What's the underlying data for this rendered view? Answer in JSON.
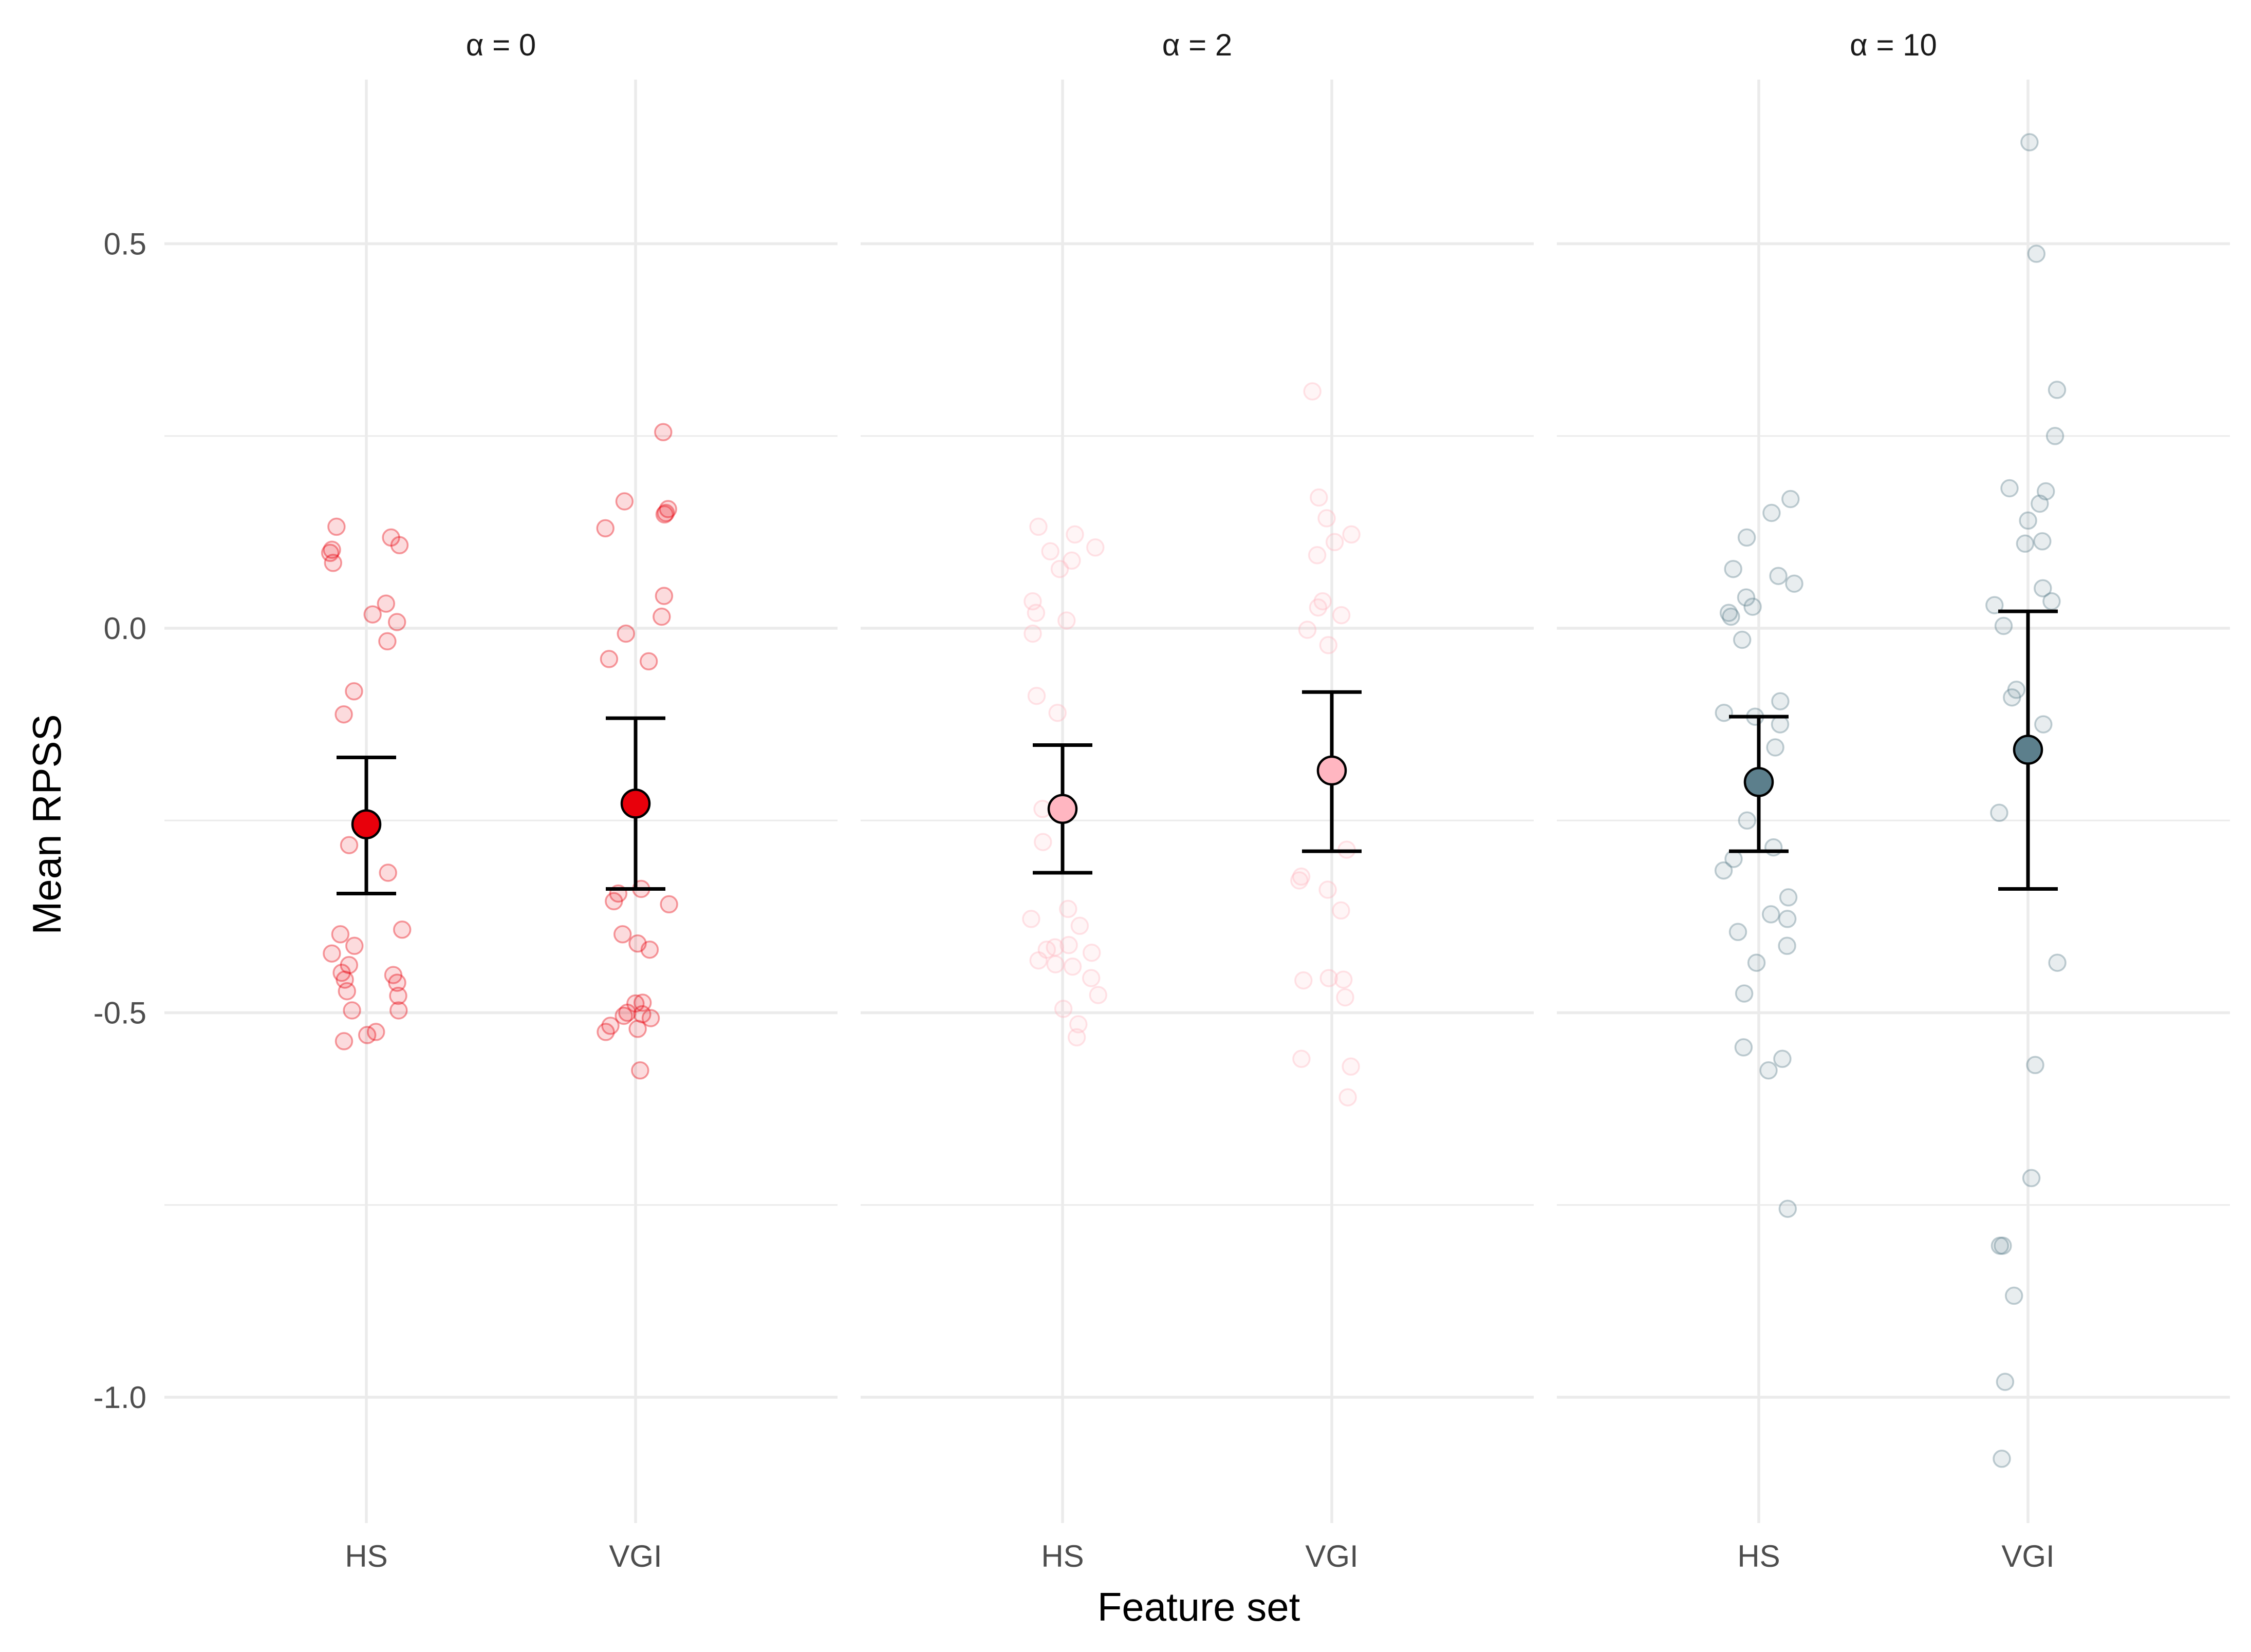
{
  "chart_data": {
    "type": "scatter",
    "title": "",
    "xlabel": "Feature set",
    "ylabel": "Mean RPSS",
    "categories": [
      "HS",
      "VGI"
    ],
    "ylim": [
      -1.17,
      0.71
    ],
    "y_ticks": [
      0.5,
      0.0,
      -0.5,
      -1.0
    ],
    "y_tick_labels": [
      "0.5",
      "0.0",
      "-0.5",
      "-1.0"
    ],
    "y_minor_ticks": [
      0.25,
      -0.25,
      -0.75
    ],
    "grid": true,
    "legend": "none",
    "panels": [
      {
        "label": "α = 0",
        "color": "#e8000b",
        "series": [
          {
            "name": "HS",
            "mean": -0.255,
            "lower": -0.345,
            "upper": -0.168,
            "points": [
              0.132,
              0.118,
              0.108,
              0.102,
              0.098,
              0.085,
              0.032,
              0.018,
              0.008,
              -0.017,
              -0.082,
              -0.112,
              -0.282,
              -0.318,
              -0.392,
              -0.398,
              -0.413,
              -0.423,
              -0.438,
              -0.448,
              -0.451,
              -0.457,
              -0.461,
              -0.472,
              -0.478,
              -0.497,
              -0.497,
              -0.525,
              -0.529,
              -0.537
            ]
          },
          {
            "name": "VGI",
            "mean": -0.228,
            "lower": -0.339,
            "upper": -0.117,
            "points": [
              0.255,
              0.165,
              0.155,
              0.15,
              0.148,
              0.13,
              0.042,
              0.015,
              -0.007,
              -0.04,
              -0.043,
              -0.339,
              -0.345,
              -0.355,
              -0.359,
              -0.398,
              -0.41,
              -0.418,
              -0.487,
              -0.488,
              -0.5,
              -0.502,
              -0.504,
              -0.507,
              -0.517,
              -0.521,
              -0.525,
              -0.575
            ]
          }
        ]
      },
      {
        "label": "α = 2",
        "color": "#ffb6c1",
        "series": [
          {
            "name": "HS",
            "mean": -0.235,
            "lower": -0.318,
            "upper": -0.152,
            "points": [
              0.132,
              0.122,
              0.105,
              0.1,
              0.088,
              0.077,
              0.035,
              0.02,
              0.01,
              -0.007,
              -0.088,
              -0.11,
              -0.235,
              -0.278,
              -0.365,
              -0.378,
              -0.387,
              -0.412,
              -0.415,
              -0.418,
              -0.422,
              -0.432,
              -0.437,
              -0.44,
              -0.455,
              -0.477,
              -0.495,
              -0.515,
              -0.532
            ]
          },
          {
            "name": "VGI",
            "mean": -0.185,
            "lower": -0.29,
            "upper": -0.083,
            "points": [
              0.308,
              0.17,
              0.143,
              0.122,
              0.112,
              0.095,
              0.035,
              0.027,
              0.017,
              -0.002,
              -0.022,
              -0.288,
              -0.323,
              -0.328,
              -0.34,
              -0.367,
              -0.455,
              -0.457,
              -0.458,
              -0.48,
              -0.56,
              -0.57,
              -0.61
            ]
          }
        ]
      },
      {
        "label": "α = 10",
        "color": "#5c7f8c",
        "series": [
          {
            "name": "HS",
            "mean": -0.2,
            "lower": -0.29,
            "upper": -0.115,
            "points": [
              0.168,
              0.15,
              0.118,
              0.077,
              0.068,
              0.058,
              0.04,
              0.028,
              0.02,
              0.015,
              -0.015,
              -0.095,
              -0.11,
              -0.115,
              -0.125,
              -0.155,
              -0.25,
              -0.285,
              -0.3,
              -0.315,
              -0.35,
              -0.372,
              -0.378,
              -0.395,
              -0.413,
              -0.435,
              -0.475,
              -0.545,
              -0.56,
              -0.575,
              -0.755
            ]
          },
          {
            "name": "VGI",
            "mean": -0.158,
            "lower": -0.339,
            "upper": 0.022,
            "points": [
              0.632,
              0.487,
              0.31,
              0.25,
              0.182,
              0.178,
              0.162,
              0.14,
              0.113,
              0.11,
              0.052,
              0.035,
              0.03,
              0.003,
              -0.08,
              -0.09,
              -0.125,
              -0.24,
              -0.435,
              -0.568,
              -0.715,
              -0.803,
              -0.803,
              -0.868,
              -0.98,
              -1.08
            ]
          }
        ]
      }
    ]
  }
}
